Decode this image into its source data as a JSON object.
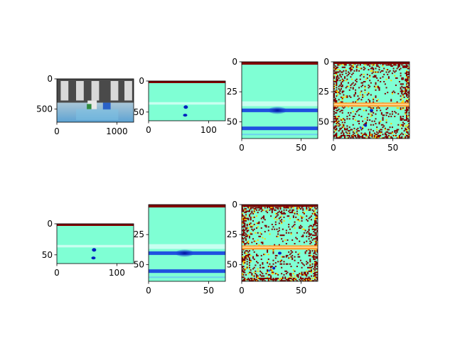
{
  "chart_data": [
    {
      "type": "heatmap",
      "content": "photo",
      "xticks": [
        0,
        1000
      ],
      "yticks": [
        0,
        500
      ],
      "xlim": [
        0,
        1280
      ],
      "ylim": [
        720,
        0
      ]
    },
    {
      "type": "heatmap",
      "content": "feature-map-wide",
      "xticks": [
        0,
        100
      ],
      "yticks": [
        0,
        50
      ],
      "xlim": [
        0,
        128
      ],
      "ylim": [
        64,
        0
      ]
    },
    {
      "type": "heatmap",
      "content": "feature-map-square",
      "xticks": [
        0,
        50
      ],
      "yticks": [
        0,
        25,
        50
      ],
      "xlim": [
        0,
        64
      ],
      "ylim": [
        64,
        0
      ]
    },
    {
      "type": "heatmap",
      "content": "feature-map-noisy",
      "xticks": [
        0,
        50
      ],
      "yticks": [
        0,
        25,
        50
      ],
      "xlim": [
        0,
        64
      ],
      "ylim": [
        64,
        0
      ]
    },
    {
      "type": "heatmap",
      "content": "feature-map-wide",
      "xticks": [
        0,
        100
      ],
      "yticks": [
        0,
        50
      ],
      "xlim": [
        0,
        128
      ],
      "ylim": [
        64,
        0
      ]
    },
    {
      "type": "heatmap",
      "content": "feature-map-square",
      "xticks": [
        0,
        50
      ],
      "yticks": [
        25,
        50
      ],
      "xlim": [
        0,
        64
      ],
      "ylim": [
        64,
        0
      ]
    },
    {
      "type": "heatmap",
      "content": "feature-map-noisy",
      "xticks": [
        0,
        50
      ],
      "yticks": [
        0,
        25,
        50
      ],
      "xlim": [
        0,
        64
      ],
      "ylim": [
        64,
        0
      ]
    }
  ],
  "colors": {
    "background": "#7fffd4",
    "cyan": "#3ffff0",
    "band_light": "#c8fff0",
    "band_orange": "#ffa030",
    "dark_blue": "#0020c0",
    "dark_red": "#800000"
  }
}
